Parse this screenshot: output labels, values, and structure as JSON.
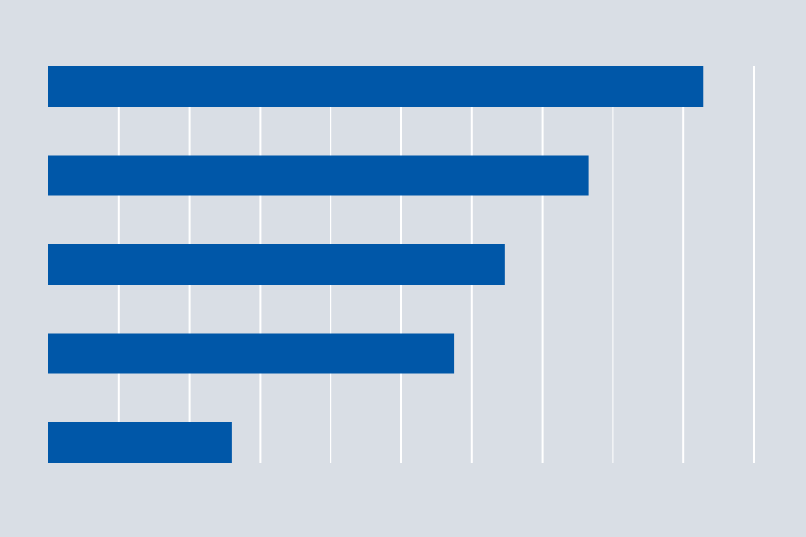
{
  "colors": {
    "background": "#d9dee5",
    "bar": "#0057a8",
    "grid": "#ffffff"
  },
  "chart_data": {
    "type": "bar",
    "orientation": "horizontal",
    "title": "",
    "xlabel": "",
    "ylabel": "",
    "categories": [
      "",
      "",
      "",
      "",
      ""
    ],
    "values": [
      9.28,
      7.66,
      6.47,
      5.75,
      2.6
    ],
    "xlim": [
      0,
      10
    ],
    "grid": "vertical",
    "legend": "none",
    "tick_labels_visible": false
  }
}
